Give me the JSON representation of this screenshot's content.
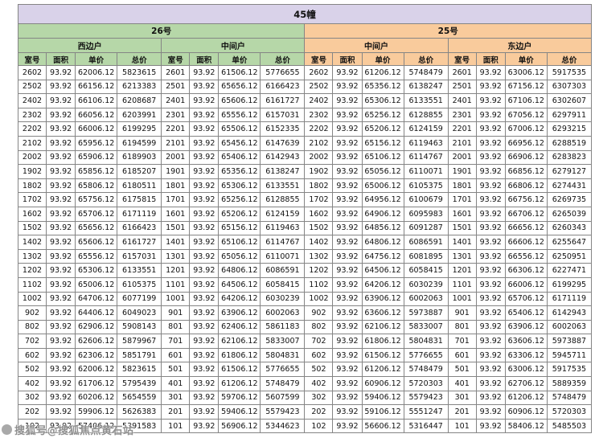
{
  "title": "45幢",
  "watermark": "搜狐号@搜狐焦点黄石站",
  "colors": {
    "title_bg": "#d9d2e9",
    "green": "#b6d7a8",
    "peach": "#f9cb9c",
    "border": "#858585"
  },
  "groups": [
    {
      "name": "26号",
      "theme": "green",
      "subgroups": [
        "西边户",
        "中间户"
      ]
    },
    {
      "name": "25号",
      "theme": "peach",
      "subgroups": [
        "中间户",
        "东边户"
      ]
    }
  ],
  "column_headers": [
    "室号",
    "面积",
    "单价",
    "总价"
  ],
  "rows": [
    [
      [
        "2602",
        "93.92",
        "62006.12",
        "5823615"
      ],
      [
        "2601",
        "93.92",
        "61506.12",
        "5776655"
      ],
      [
        "2602",
        "93.92",
        "61206.12",
        "5748479"
      ],
      [
        "2601",
        "93.92",
        "63006.12",
        "5917535"
      ]
    ],
    [
      [
        "2502",
        "93.92",
        "66156.12",
        "6213383"
      ],
      [
        "2501",
        "93.92",
        "65656.12",
        "6166423"
      ],
      [
        "2502",
        "93.92",
        "65356.12",
        "6138247"
      ],
      [
        "2501",
        "93.92",
        "67156.12",
        "6307303"
      ]
    ],
    [
      [
        "2402",
        "93.92",
        "66106.12",
        "6208687"
      ],
      [
        "2401",
        "93.92",
        "65606.12",
        "6161727"
      ],
      [
        "2402",
        "93.92",
        "65306.12",
        "6133551"
      ],
      [
        "2401",
        "93.92",
        "67106.12",
        "6302607"
      ]
    ],
    [
      [
        "2302",
        "93.92",
        "66056.12",
        "6203991"
      ],
      [
        "2301",
        "93.92",
        "65556.12",
        "6157031"
      ],
      [
        "2302",
        "93.92",
        "65256.12",
        "6128855"
      ],
      [
        "2301",
        "93.92",
        "67056.12",
        "6297911"
      ]
    ],
    [
      [
        "2202",
        "93.92",
        "66006.12",
        "6199295"
      ],
      [
        "2201",
        "93.92",
        "65506.12",
        "6152335"
      ],
      [
        "2202",
        "93.92",
        "65206.12",
        "6124159"
      ],
      [
        "2201",
        "93.92",
        "67006.12",
        "6293215"
      ]
    ],
    [
      [
        "2102",
        "93.92",
        "65956.12",
        "6194599"
      ],
      [
        "2101",
        "93.92",
        "65456.12",
        "6147639"
      ],
      [
        "2102",
        "93.92",
        "65156.12",
        "6119463"
      ],
      [
        "2101",
        "93.92",
        "66956.12",
        "6288519"
      ]
    ],
    [
      [
        "2002",
        "93.92",
        "65906.12",
        "6189903"
      ],
      [
        "2001",
        "93.92",
        "65406.12",
        "6142943"
      ],
      [
        "2002",
        "93.92",
        "65106.12",
        "6114767"
      ],
      [
        "2001",
        "93.92",
        "66906.12",
        "6283823"
      ]
    ],
    [
      [
        "1902",
        "93.92",
        "65856.12",
        "6185207"
      ],
      [
        "1901",
        "93.92",
        "65356.12",
        "6138247"
      ],
      [
        "1902",
        "93.92",
        "65056.12",
        "6110071"
      ],
      [
        "1901",
        "93.92",
        "66856.12",
        "6279127"
      ]
    ],
    [
      [
        "1802",
        "93.92",
        "65806.12",
        "6180511"
      ],
      [
        "1801",
        "93.92",
        "65306.12",
        "6133551"
      ],
      [
        "1802",
        "93.92",
        "65006.12",
        "6105375"
      ],
      [
        "1801",
        "93.92",
        "66806.12",
        "6274431"
      ]
    ],
    [
      [
        "1702",
        "93.92",
        "65756.12",
        "6175815"
      ],
      [
        "1701",
        "93.92",
        "65256.12",
        "6128855"
      ],
      [
        "1702",
        "93.92",
        "64956.12",
        "6100679"
      ],
      [
        "1701",
        "93.92",
        "66756.12",
        "6269735"
      ]
    ],
    [
      [
        "1602",
        "93.92",
        "65706.12",
        "6171119"
      ],
      [
        "1601",
        "93.92",
        "65206.12",
        "6124159"
      ],
      [
        "1602",
        "93.92",
        "64906.12",
        "6095983"
      ],
      [
        "1601",
        "93.92",
        "66706.12",
        "6265039"
      ]
    ],
    [
      [
        "1502",
        "93.92",
        "65656.12",
        "6166423"
      ],
      [
        "1501",
        "93.92",
        "65156.12",
        "6119463"
      ],
      [
        "1502",
        "93.92",
        "64856.12",
        "6091287"
      ],
      [
        "1501",
        "93.92",
        "66656.12",
        "6260343"
      ]
    ],
    [
      [
        "1402",
        "93.92",
        "65606.12",
        "6161727"
      ],
      [
        "1401",
        "93.92",
        "65106.12",
        "6114767"
      ],
      [
        "1402",
        "93.92",
        "64806.12",
        "6086591"
      ],
      [
        "1401",
        "93.92",
        "66606.12",
        "6255647"
      ]
    ],
    [
      [
        "1302",
        "93.92",
        "65556.12",
        "6157031"
      ],
      [
        "1301",
        "93.92",
        "65056.12",
        "6110071"
      ],
      [
        "1302",
        "93.92",
        "64756.12",
        "6081895"
      ],
      [
        "1301",
        "93.92",
        "66556.12",
        "6250951"
      ]
    ],
    [
      [
        "1202",
        "93.92",
        "65306.12",
        "6133551"
      ],
      [
        "1201",
        "93.92",
        "64806.12",
        "6086591"
      ],
      [
        "1202",
        "93.92",
        "64506.12",
        "6058415"
      ],
      [
        "1201",
        "93.92",
        "66306.12",
        "6227471"
      ]
    ],
    [
      [
        "1102",
        "93.92",
        "65006.12",
        "6105375"
      ],
      [
        "1101",
        "93.92",
        "64506.12",
        "6058415"
      ],
      [
        "1102",
        "93.92",
        "64206.12",
        "6030239"
      ],
      [
        "1101",
        "93.92",
        "66006.12",
        "6199295"
      ]
    ],
    [
      [
        "1002",
        "93.92",
        "64706.12",
        "6077199"
      ],
      [
        "1001",
        "93.92",
        "64206.12",
        "6030239"
      ],
      [
        "1002",
        "93.92",
        "63906.12",
        "6002063"
      ],
      [
        "1001",
        "93.92",
        "65706.12",
        "6171119"
      ]
    ],
    [
      [
        "902",
        "93.92",
        "64406.12",
        "6049023"
      ],
      [
        "901",
        "93.92",
        "63906.12",
        "6002063"
      ],
      [
        "902",
        "93.92",
        "63606.12",
        "5973887"
      ],
      [
        "901",
        "93.92",
        "65406.12",
        "6142943"
      ]
    ],
    [
      [
        "802",
        "93.92",
        "62906.12",
        "5908143"
      ],
      [
        "801",
        "93.92",
        "62406.12",
        "5861183"
      ],
      [
        "802",
        "93.92",
        "62106.12",
        "5833007"
      ],
      [
        "801",
        "93.92",
        "63906.12",
        "6002063"
      ]
    ],
    [
      [
        "702",
        "93.92",
        "62606.12",
        "5879967"
      ],
      [
        "701",
        "93.92",
        "62106.12",
        "5833007"
      ],
      [
        "702",
        "93.92",
        "61806.12",
        "5804831"
      ],
      [
        "701",
        "93.92",
        "63606.12",
        "5973887"
      ]
    ],
    [
      [
        "602",
        "93.92",
        "62306.12",
        "5851791"
      ],
      [
        "601",
        "93.92",
        "61806.12",
        "5804831"
      ],
      [
        "602",
        "93.92",
        "61506.12",
        "5776655"
      ],
      [
        "601",
        "93.92",
        "63306.12",
        "5945711"
      ]
    ],
    [
      [
        "502",
        "93.92",
        "62006.12",
        "5823615"
      ],
      [
        "501",
        "93.92",
        "61506.12",
        "5776655"
      ],
      [
        "502",
        "93.92",
        "61206.12",
        "5748479"
      ],
      [
        "501",
        "93.92",
        "63006.12",
        "5917535"
      ]
    ],
    [
      [
        "402",
        "93.92",
        "61706.12",
        "5795439"
      ],
      [
        "401",
        "93.92",
        "61206.12",
        "5748479"
      ],
      [
        "402",
        "93.92",
        "60906.12",
        "5720303"
      ],
      [
        "401",
        "93.92",
        "62706.12",
        "5889359"
      ]
    ],
    [
      [
        "302",
        "93.92",
        "60206.12",
        "5654559"
      ],
      [
        "301",
        "93.92",
        "59706.12",
        "5607599"
      ],
      [
        "302",
        "93.92",
        "59406.12",
        "5579423"
      ],
      [
        "301",
        "93.92",
        "61206.12",
        "5748479"
      ]
    ],
    [
      [
        "202",
        "93.92",
        "59906.12",
        "5626383"
      ],
      [
        "201",
        "93.92",
        "59406.12",
        "5579423"
      ],
      [
        "202",
        "93.92",
        "59106.12",
        "5551247"
      ],
      [
        "201",
        "93.92",
        "60906.12",
        "5720303"
      ]
    ],
    [
      [
        "102",
        "93.92",
        "57406.12",
        "5391583"
      ],
      [
        "101",
        "93.92",
        "56906.12",
        "5344623"
      ],
      [
        "102",
        "93.92",
        "56606.12",
        "5316447"
      ],
      [
        "101",
        "93.92",
        "58406.12",
        "5485503"
      ]
    ]
  ]
}
